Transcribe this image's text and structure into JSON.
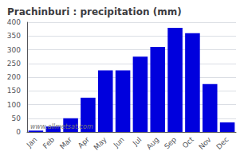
{
  "chart_data": {
    "type": "bar",
    "title": "Prachinburi : precipitation (mm)",
    "categories": [
      "Jan",
      "Feb",
      "Mar",
      "Apr",
      "May",
      "Jun",
      "Jul",
      "Aug",
      "Sep",
      "Oct",
      "Nov",
      "Dec"
    ],
    "values": [
      5,
      20,
      50,
      125,
      225,
      225,
      275,
      310,
      380,
      360,
      175,
      35
    ],
    "color": "#0000DD",
    "ylim": [
      0,
      400
    ],
    "yticks": [
      0,
      50,
      100,
      150,
      200,
      250,
      300,
      350,
      400
    ],
    "grid": true,
    "annotations": [
      "www.allmetsat.com"
    ]
  }
}
